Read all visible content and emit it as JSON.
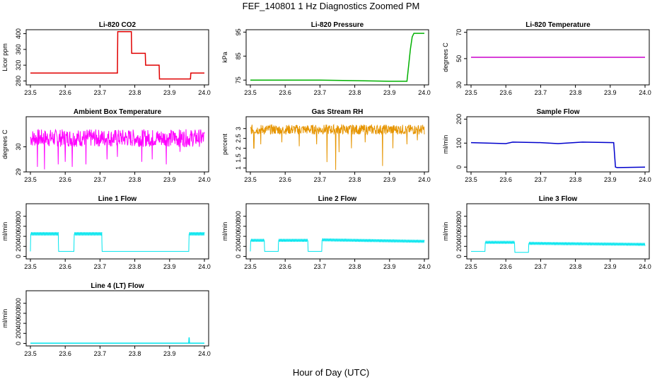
{
  "figure": {
    "title": "FEF_140801 1 Hz Diagnostics Zoomed PM",
    "xlabel": "Hour of Day (UTC)"
  },
  "chart_data": [
    {
      "id": "co2",
      "type": "line",
      "title": "Li-820 CO2",
      "ylabel": "Licor ppm",
      "color": "#e00000",
      "xlim": [
        23.5,
        24.0
      ],
      "ylim": [
        270,
        410
      ],
      "xticks": [
        "23.5",
        "23.6",
        "23.7",
        "23.8",
        "23.9",
        "24.0"
      ],
      "yticks": [
        280,
        320,
        360,
        400
      ],
      "x": [
        23.5,
        23.6,
        23.7,
        23.75,
        23.751,
        23.79,
        23.791,
        23.83,
        23.831,
        23.87,
        23.871,
        23.96,
        23.961,
        24.0
      ],
      "y": [
        300,
        300,
        300,
        300,
        405,
        405,
        350,
        350,
        320,
        320,
        285,
        285,
        300,
        300
      ]
    },
    {
      "id": "pressure",
      "type": "line",
      "title": "Li-820 Pressure",
      "ylabel": "kPa",
      "color": "#00b000",
      "xlim": [
        23.5,
        24.0
      ],
      "ylim": [
        73,
        96
      ],
      "xticks": [
        "23.5",
        "23.6",
        "23.7",
        "23.8",
        "23.9",
        "24.0"
      ],
      "yticks": [
        75,
        85,
        95
      ],
      "x": [
        23.5,
        23.7,
        23.9,
        23.95,
        23.96,
        23.965,
        23.97,
        24.0
      ],
      "y": [
        75,
        75,
        74.5,
        74.5,
        88,
        93,
        94.5,
        94.5
      ]
    },
    {
      "id": "temp",
      "type": "line",
      "title": "Li-820 Temperature",
      "ylabel": "degrees C",
      "color": "#cc00cc",
      "xlim": [
        23.5,
        24.0
      ],
      "ylim": [
        30,
        72
      ],
      "xticks": [
        "23.5",
        "23.6",
        "23.7",
        "23.8",
        "23.9",
        "24.0"
      ],
      "yticks": [
        30,
        50,
        70
      ],
      "x": [
        23.5,
        24.0
      ],
      "y": [
        51,
        51
      ]
    },
    {
      "id": "ambient",
      "type": "line",
      "title": "Ambient Box Temperature",
      "ylabel": "degrees C",
      "color": "#ff00ff",
      "xlim": [
        23.5,
        24.0
      ],
      "ylim": [
        29.0,
        31.2
      ],
      "xticks": [
        "23.5",
        "23.6",
        "23.7",
        "23.8",
        "23.9",
        "24.0"
      ],
      "yticks": [
        29.0,
        30.0
      ],
      "noise": {
        "center": 30.35,
        "amplitude": 0.35,
        "spikes_down": [
          [
            23.52,
            29.2
          ],
          [
            23.54,
            29.1
          ],
          [
            23.58,
            29.3
          ],
          [
            23.6,
            29.4
          ],
          [
            23.62,
            29.2
          ],
          [
            23.66,
            29.3
          ],
          [
            23.72,
            29.5
          ],
          [
            23.75,
            29.6
          ],
          [
            23.82,
            29.4
          ],
          [
            23.85,
            29.5
          ],
          [
            23.89,
            29.3
          ],
          [
            23.93,
            29.8
          ]
        ]
      }
    },
    {
      "id": "rh",
      "type": "line",
      "title": "Gas Stream RH",
      "ylabel": "percent",
      "color": "#e69500",
      "xlim": [
        23.5,
        24.0
      ],
      "ylim": [
        0.8,
        3.6
      ],
      "xticks": [
        "23.5",
        "23.6",
        "23.7",
        "23.8",
        "23.9",
        "24.0"
      ],
      "yticks": [
        1.0,
        1.5,
        2.0,
        2.5,
        3.0
      ],
      "noise": {
        "center": 2.95,
        "amplitude": 0.25,
        "spikes_down": [
          [
            23.51,
            2.0
          ],
          [
            23.53,
            2.2
          ],
          [
            23.59,
            2.3
          ],
          [
            23.64,
            2.1
          ],
          [
            23.69,
            2.2
          ],
          [
            23.72,
            1.3
          ],
          [
            23.745,
            0.9
          ],
          [
            23.755,
            1.8
          ],
          [
            23.79,
            2.0
          ],
          [
            23.83,
            2.3
          ],
          [
            23.88,
            1.1
          ],
          [
            23.91,
            2.0
          ],
          [
            23.95,
            2.2
          ],
          [
            23.98,
            2.4
          ]
        ]
      }
    },
    {
      "id": "sample",
      "type": "line",
      "title": "Sample Flow",
      "ylabel": "ml/min",
      "color": "#0000cc",
      "xlim": [
        23.5,
        24.0
      ],
      "ylim": [
        -20,
        210
      ],
      "xticks": [
        "23.5",
        "23.6",
        "23.7",
        "23.8",
        "23.9",
        "24.0"
      ],
      "yticks": [
        0,
        100,
        200
      ],
      "x": [
        23.5,
        23.6,
        23.62,
        23.7,
        23.75,
        23.82,
        23.91,
        23.915,
        23.92,
        24.0
      ],
      "y": [
        102,
        98,
        104,
        102,
        98,
        104,
        102,
        0,
        -2,
        0
      ]
    },
    {
      "id": "line1",
      "type": "line",
      "title": "Line 1 Flow",
      "ylabel": "ml/min",
      "color": "#00e5ee",
      "xlim": [
        23.5,
        24.0
      ],
      "ylim": [
        -50,
        1050
      ],
      "xticks": [
        "23.5",
        "23.6",
        "23.7",
        "23.8",
        "23.9",
        "24.0"
      ],
      "yticks": [
        0,
        200,
        400,
        600,
        800
      ],
      "x": [
        23.5,
        23.501,
        23.58,
        23.581,
        23.625,
        23.626,
        23.705,
        23.706,
        23.955,
        23.956,
        24.0
      ],
      "y": [
        100,
        450,
        450,
        100,
        100,
        450,
        450,
        100,
        100,
        450,
        450
      ],
      "band": 70
    },
    {
      "id": "line2",
      "type": "line",
      "title": "Line 2 Flow",
      "ylabel": "ml/min",
      "color": "#00e5ee",
      "xlim": [
        23.5,
        24.0
      ],
      "ylim": [
        -50,
        1050
      ],
      "xticks": [
        "23.5",
        "23.6",
        "23.7",
        "23.8",
        "23.9",
        "24.0"
      ],
      "yticks": [
        0,
        200,
        400,
        600,
        800
      ],
      "x": [
        23.5,
        23.501,
        23.54,
        23.541,
        23.58,
        23.581,
        23.665,
        23.666,
        23.705,
        23.706,
        24.0
      ],
      "y": [
        100,
        320,
        320,
        100,
        100,
        320,
        320,
        100,
        100,
        330,
        300
      ],
      "band": 60
    },
    {
      "id": "line3",
      "type": "line",
      "title": "Line 3 Flow",
      "ylabel": "ml/min",
      "color": "#00e5ee",
      "xlim": [
        23.5,
        24.0
      ],
      "ylim": [
        -50,
        1050
      ],
      "xticks": [
        "23.5",
        "23.6",
        "23.7",
        "23.8",
        "23.9",
        "24.0"
      ],
      "yticks": [
        0,
        200,
        400,
        600,
        800
      ],
      "x": [
        23.5,
        23.501,
        23.54,
        23.541,
        23.625,
        23.626,
        23.665,
        23.666,
        24.0
      ],
      "y": [
        100,
        100,
        100,
        280,
        280,
        80,
        80,
        260,
        240
      ],
      "band": 60
    },
    {
      "id": "line4",
      "type": "line",
      "title": "Line 4 (LT) Flow",
      "ylabel": "ml/min",
      "color": "#00e5ee",
      "xlim": [
        23.5,
        24.0
      ],
      "ylim": [
        -50,
        1050
      ],
      "xticks": [
        "23.5",
        "23.6",
        "23.7",
        "23.8",
        "23.9",
        "24.0"
      ],
      "yticks": [
        0,
        200,
        400,
        600,
        800
      ],
      "x": [
        23.5,
        23.955,
        23.956,
        23.957,
        23.958,
        24.0
      ],
      "y": [
        5,
        5,
        120,
        5,
        5,
        5
      ]
    }
  ]
}
